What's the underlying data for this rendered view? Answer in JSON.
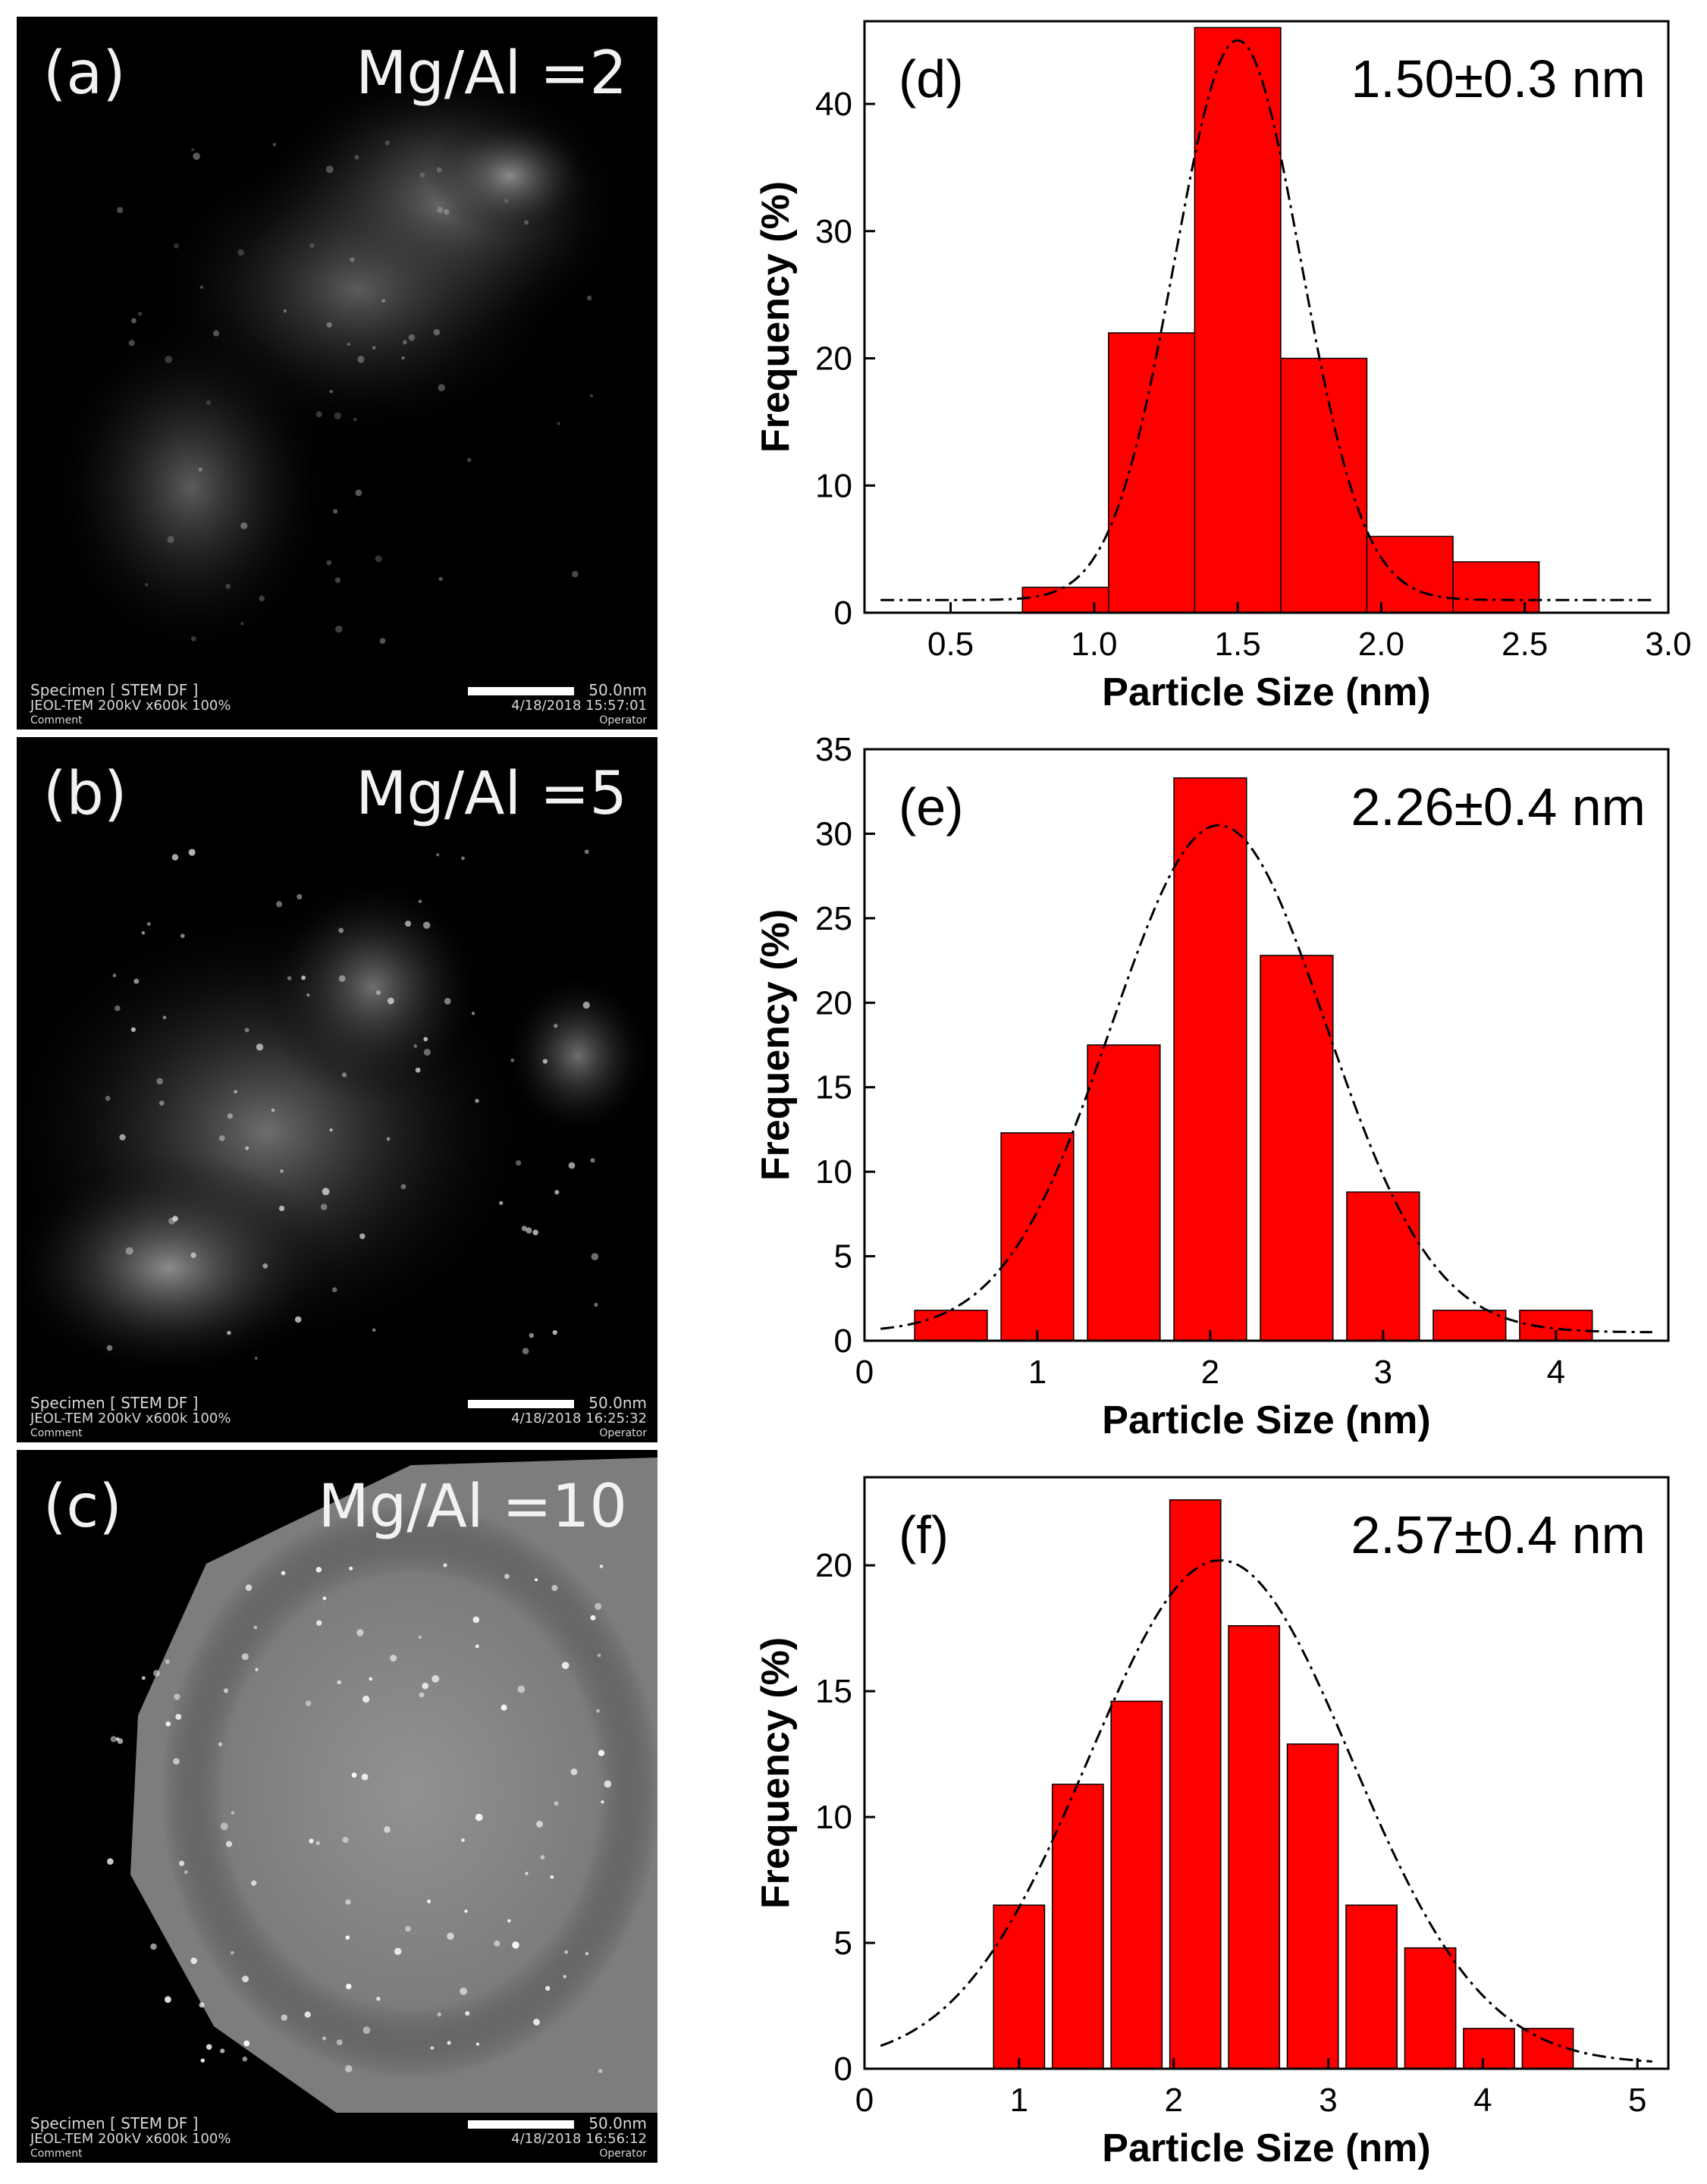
{
  "stem_panels": [
    {
      "label": "(a)",
      "ratio": "Mg/Al =2",
      "specimen": "Specimen [ STEM DF ]",
      "instrument": "JEOL-TEM 200kV x600k 100%",
      "comment": "Comment",
      "scale": "50.0nm",
      "datetime": "4/18/2018 15:57:01",
      "operator": "Operator"
    },
    {
      "label": "(b)",
      "ratio": "Mg/Al =5",
      "specimen": "Specimen [ STEM DF ]",
      "instrument": "JEOL-TEM 200kV x600k 100%",
      "comment": "Comment",
      "scale": "50.0nm",
      "datetime": "4/18/2018 16:25:32",
      "operator": "Operator"
    },
    {
      "label": "(c)",
      "ratio": "Mg/Al =10",
      "specimen": "Specimen [ STEM DF ]",
      "instrument": "JEOL-TEM 200kV x600k 100%",
      "comment": "Comment",
      "scale": "50.0nm",
      "datetime": "4/18/2018 16:56:12",
      "operator": "Operator"
    }
  ],
  "colors": {
    "bar_fill": "#ff0000",
    "bar_edge": "#000000",
    "fit_line": "#000000"
  },
  "chart_data": [
    {
      "type": "bar",
      "panel_label": "(d)",
      "annotation": "1.50±0.3 nm",
      "xlabel": "Particle Size (nm)",
      "ylabel": "Frequency (%)",
      "xlim": [
        0.2,
        3.0
      ],
      "ylim": [
        0,
        46.5
      ],
      "xticks": [
        0.5,
        1.0,
        1.5,
        2.0,
        2.5,
        3.0
      ],
      "xtick_labels": [
        "0.5",
        "1.0",
        "1.5",
        "2.0",
        "2.5",
        "3.0"
      ],
      "yticks": [
        0,
        10,
        20,
        30,
        40
      ],
      "bar_width": 0.3,
      "x": [
        0.9,
        1.2,
        1.5,
        1.8,
        2.1,
        2.4
      ],
      "values": [
        2,
        22,
        46,
        20,
        6,
        4
      ],
      "fit": {
        "type": "gaussian",
        "mean": 1.5,
        "sigma": 0.22,
        "peak": 45,
        "baseline": 1
      }
    },
    {
      "type": "bar",
      "panel_label": "(e)",
      "annotation": "2.26±0.4 nm",
      "xlabel": "Particle Size (nm)",
      "ylabel": "Frequency (%)",
      "xlim": [
        0,
        4.65
      ],
      "ylim": [
        0,
        35
      ],
      "xticks": [
        0,
        1,
        2,
        3,
        4
      ],
      "xtick_labels": [
        "0",
        "1",
        "2",
        "3",
        "4"
      ],
      "yticks": [
        0,
        5,
        10,
        15,
        20,
        25,
        30,
        35
      ],
      "bar_width": 0.42,
      "x": [
        0.5,
        1.0,
        1.5,
        2.0,
        2.5,
        3.0,
        3.5,
        4.0
      ],
      "values": [
        1.8,
        12.3,
        17.5,
        33.3,
        22.8,
        8.8,
        1.8,
        1.8
      ],
      "fit": {
        "type": "gaussian",
        "mean": 2.05,
        "sigma": 0.62,
        "peak": 30.5,
        "baseline": 0.5
      }
    },
    {
      "type": "bar",
      "panel_label": "(f)",
      "annotation": "2.57±0.4 nm",
      "xlabel": "Particle Size (nm)",
      "ylabel": "Frequency (%)",
      "xlim": [
        0,
        5.2
      ],
      "ylim": [
        0,
        23.5
      ],
      "xticks": [
        0,
        1,
        2,
        3,
        4,
        5
      ],
      "xtick_labels": [
        "0",
        "1",
        "2",
        "3",
        "4",
        "5"
      ],
      "yticks": [
        0,
        5,
        10,
        15,
        20
      ],
      "bar_width": 0.33,
      "x": [
        1.0,
        1.38,
        1.76,
        2.14,
        2.52,
        2.9,
        3.28,
        3.66,
        4.04,
        4.42
      ],
      "values": [
        6.5,
        11.3,
        14.6,
        22.6,
        17.6,
        12.9,
        6.5,
        4.8,
        1.6,
        1.6
      ],
      "fit": {
        "type": "gaussian",
        "mean": 2.3,
        "sigma": 0.85,
        "peak": 20.2,
        "baseline": 0.2
      }
    }
  ]
}
